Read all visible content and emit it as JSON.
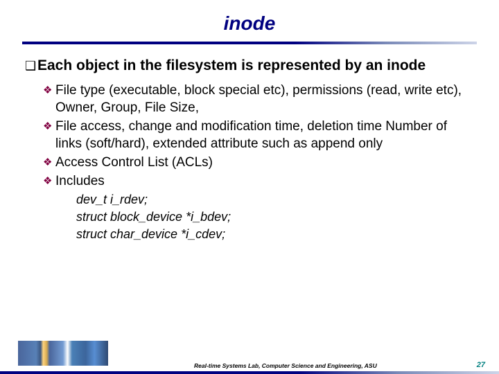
{
  "slide": {
    "title": "inode",
    "title_color": "#000080",
    "title_fontsize": 28,
    "rule_gradient": [
      "#000080",
      "#cdd4e8"
    ],
    "background": "#ffffff"
  },
  "bullets": {
    "level1_marker": "❑",
    "level1_marker_color": "#000000",
    "level2_marker": "❖",
    "level2_marker_color": "#800040",
    "main": "Each object in the filesystem is represented by an inode",
    "subs": [
      "File type (executable, block special etc), permissions (read, write etc), Owner, Group, File Size,",
      "File access, change and modification time, deletion time Number of links (soft/hard), extended attribute such as append only",
      "Access Control List (ACLs)",
      "Includes"
    ],
    "code": [
      "dev_t i_rdev;",
      "struct block_device *i_bdev;",
      "struct char_device *i_cdev;"
    ]
  },
  "footer": {
    "text": "Real-time Systems Lab, Computer Science and Engineering, ASU",
    "page": "27",
    "page_color": "#008080"
  }
}
